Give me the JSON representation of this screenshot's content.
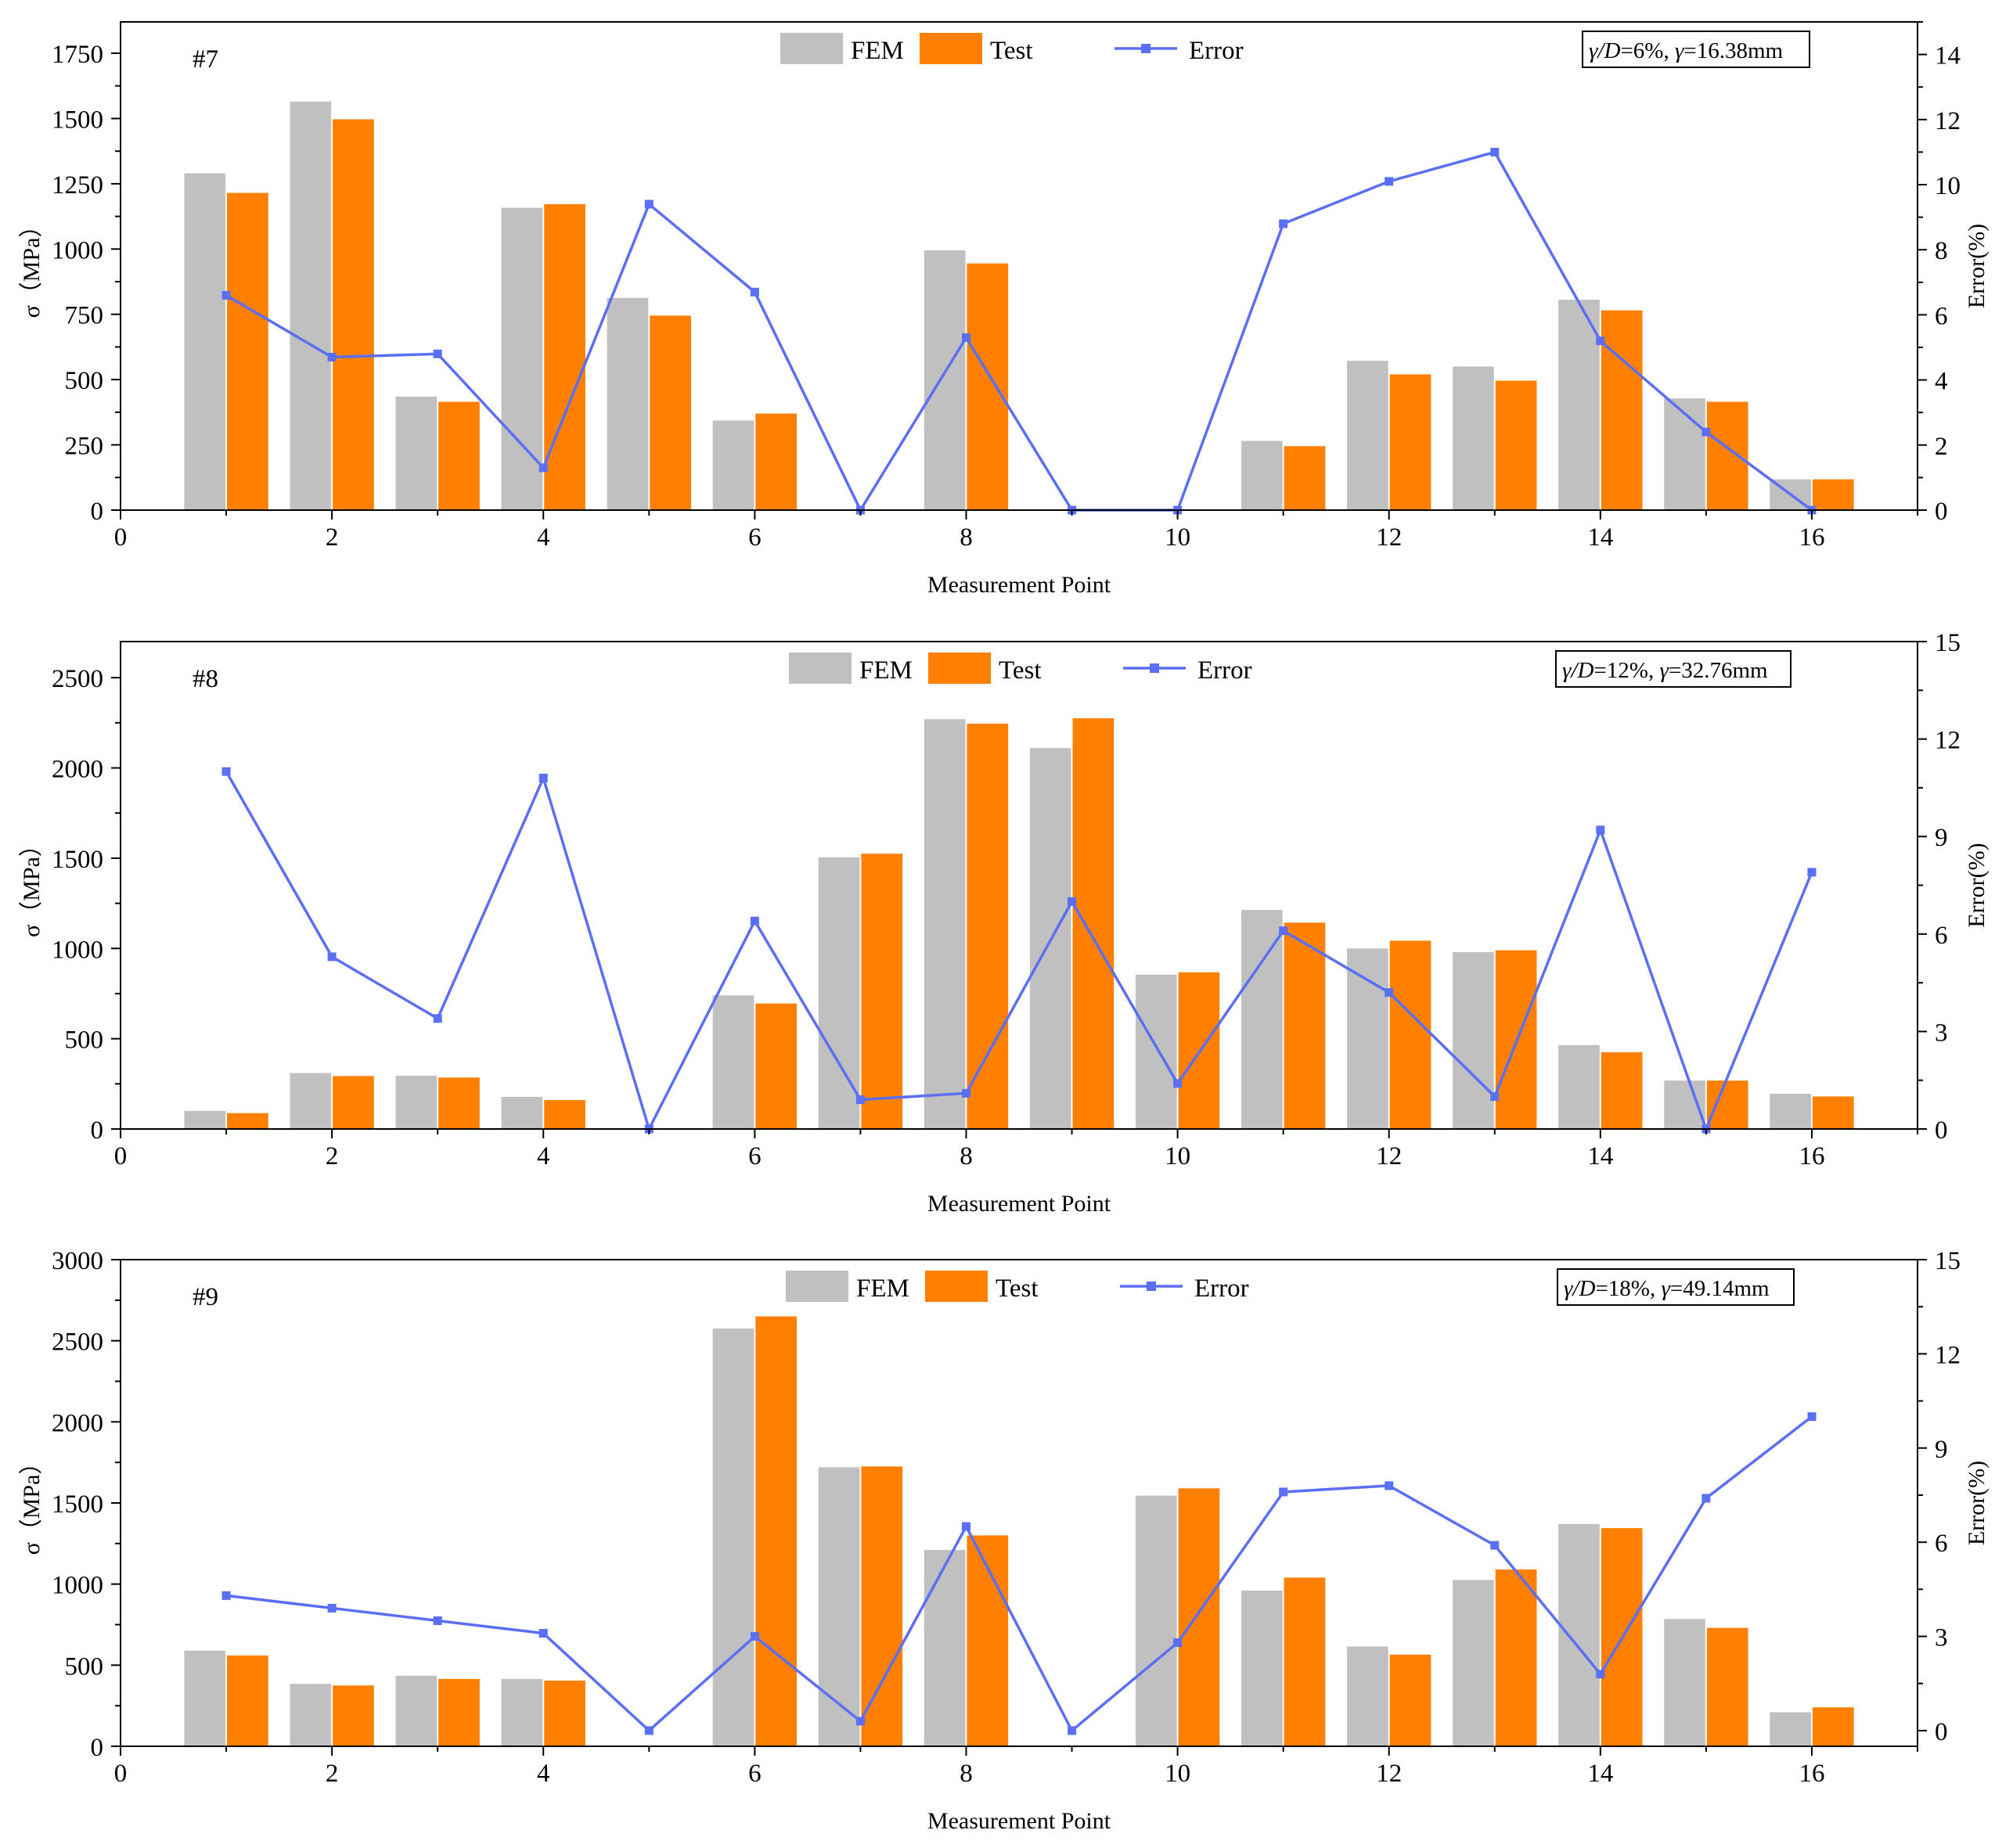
{
  "colors": {
    "fem": "#c0c0c0",
    "test": "#ff8000",
    "error": "#5b6ff5",
    "axis": "#000000"
  },
  "legend": {
    "fem": "FEM",
    "test": "Test",
    "error": "Error"
  },
  "chart_data": [
    {
      "type": "bar",
      "panel_label": "#7",
      "note_parts": [
        "γ/D",
        "=6%, ",
        "γ",
        "=16.38mm"
      ],
      "xlabel": "Measurement Point",
      "ylabel": "σ（MPa）",
      "y2label": "Error(%)",
      "xlim": [
        0,
        17
      ],
      "xticks": [
        0,
        2,
        4,
        6,
        8,
        10,
        12,
        14,
        16
      ],
      "ylim": [
        0,
        1870
      ],
      "yticks": [
        0,
        250,
        500,
        750,
        1000,
        1250,
        1500,
        1750
      ],
      "y2lim": [
        0,
        15
      ],
      "y2ticks": [
        0,
        2,
        4,
        6,
        8,
        10,
        12,
        14
      ],
      "x": [
        1,
        2,
        3,
        4,
        5,
        6,
        7,
        8,
        9,
        10,
        11,
        12,
        13,
        14,
        15,
        16
      ],
      "series": [
        {
          "name": "FEM",
          "values": [
            1290,
            1565,
            435,
            1158,
            813,
            343,
            0,
            995,
            0,
            0,
            265,
            572,
            550,
            806,
            428,
            118
          ]
        },
        {
          "name": "Test",
          "values": [
            1215,
            1497,
            415,
            1172,
            745,
            370,
            0,
            945,
            0,
            0,
            245,
            520,
            496,
            765,
            415,
            118
          ]
        },
        {
          "name": "Error",
          "axis": "right",
          "values": [
            6.6,
            4.7,
            4.8,
            1.3,
            9.4,
            6.7,
            0.0,
            5.3,
            0.0,
            0.0,
            8.8,
            10.1,
            11.0,
            5.2,
            2.4,
            0.0
          ]
        }
      ]
    },
    {
      "type": "bar",
      "panel_label": "#8",
      "note_parts": [
        "γ/D",
        "=12%, ",
        "γ",
        "=32.76mm"
      ],
      "xlabel": "Measurement Point",
      "ylabel": "σ（MPa）",
      "y2label": "Error(%)",
      "xlim": [
        0,
        17
      ],
      "xticks": [
        0,
        2,
        4,
        6,
        8,
        10,
        12,
        14,
        16
      ],
      "ylim": [
        0,
        2700
      ],
      "yticks": [
        0,
        500,
        1000,
        1500,
        2000,
        2500
      ],
      "y2lim": [
        0,
        15
      ],
      "y2ticks": [
        0,
        3,
        6,
        9,
        12,
        15
      ],
      "x": [
        1,
        2,
        3,
        4,
        5,
        6,
        7,
        8,
        9,
        10,
        11,
        12,
        13,
        14,
        15,
        16
      ],
      "series": [
        {
          "name": "FEM",
          "values": [
            100,
            310,
            295,
            178,
            0,
            740,
            1505,
            2270,
            2110,
            855,
            1213,
            1000,
            980,
            465,
            268,
            195
          ]
        },
        {
          "name": "Test",
          "values": [
            88,
            293,
            285,
            160,
            0,
            695,
            1525,
            2245,
            2275,
            868,
            1143,
            1043,
            990,
            425,
            268,
            180
          ]
        },
        {
          "name": "Error",
          "axis": "right",
          "values": [
            11.0,
            5.3,
            3.4,
            10.8,
            0.0,
            6.4,
            0.9,
            1.1,
            7.0,
            1.4,
            6.1,
            4.2,
            1.0,
            9.2,
            0.0,
            7.9
          ]
        }
      ]
    },
    {
      "type": "bar",
      "panel_label": "#9",
      "note_parts": [
        "γ/D",
        "=18%, ",
        "γ",
        "=49.14mm"
      ],
      "xlabel": "Measurement Point",
      "ylabel": "σ（MPa）",
      "y2label": "Error(%)",
      "xlim": [
        0,
        17
      ],
      "xticks": [
        0,
        2,
        4,
        6,
        8,
        10,
        12,
        14,
        16
      ],
      "ylim": [
        0,
        3000
      ],
      "yticks": [
        0,
        500,
        1000,
        1500,
        2000,
        2500,
        3000
      ],
      "y2lim": [
        -0.5,
        15
      ],
      "y2ticks": [
        0,
        3,
        6,
        9,
        12,
        15
      ],
      "x": [
        1,
        2,
        3,
        4,
        5,
        6,
        7,
        8,
        9,
        10,
        11,
        12,
        13,
        14,
        15,
        16
      ],
      "series": [
        {
          "name": "FEM",
          "values": [
            590,
            385,
            435,
            415,
            0,
            2575,
            1720,
            1210,
            0,
            1545,
            960,
            615,
            1025,
            1370,
            785,
            210
          ]
        },
        {
          "name": "Test",
          "values": [
            560,
            375,
            415,
            405,
            0,
            2650,
            1725,
            1300,
            0,
            1590,
            1040,
            565,
            1090,
            1345,
            730,
            240
          ]
        },
        {
          "name": "Error",
          "axis": "right",
          "values": [
            4.3,
            3.9,
            3.5,
            3.1,
            0.0,
            3.0,
            0.3,
            6.5,
            0.0,
            2.8,
            7.6,
            7.8,
            5.9,
            1.8,
            7.4,
            10.0
          ]
        }
      ]
    }
  ]
}
